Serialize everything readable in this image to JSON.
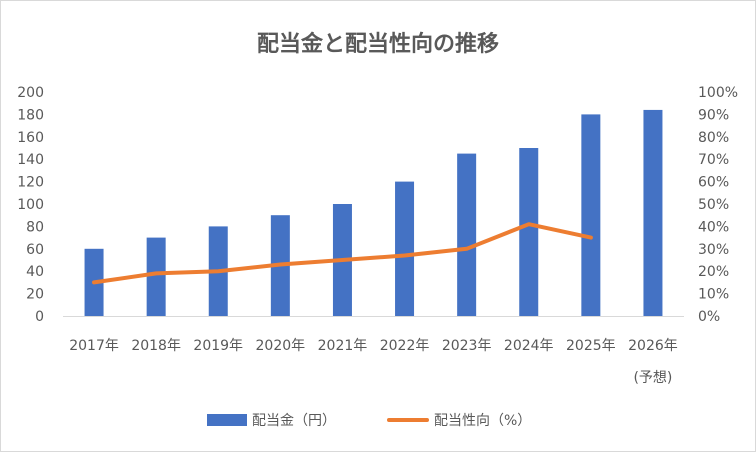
{
  "chart_data": {
    "type": "bar+line",
    "title": "配当金と配当性向の推移",
    "categories": [
      "2017年",
      "2018年",
      "2019年",
      "2020年",
      "2021年",
      "2022年",
      "2023年",
      "2024年",
      "2025年",
      "2026年"
    ],
    "category_sublabels": [
      "",
      "",
      "",
      "",
      "",
      "",
      "",
      "",
      "",
      "(予想)"
    ],
    "series": [
      {
        "name": "配当金（円）",
        "type": "bar",
        "axis": "left",
        "color": "#4472c4",
        "values": [
          60,
          70,
          80,
          90,
          100,
          120,
          145,
          150,
          180,
          184
        ]
      },
      {
        "name": "配当性向（%）",
        "type": "line",
        "axis": "right",
        "color": "#ed7d31",
        "values": [
          15,
          19,
          20,
          23,
          25,
          27,
          30,
          41,
          35,
          null
        ]
      }
    ],
    "y_left": {
      "min": 0,
      "max": 200,
      "step": 20,
      "ticks": [
        "0",
        "20",
        "40",
        "60",
        "80",
        "100",
        "120",
        "140",
        "160",
        "180",
        "200"
      ]
    },
    "y_right": {
      "min": 0,
      "max": 100,
      "step": 10,
      "ticks": [
        "0%",
        "10%",
        "20%",
        "30%",
        "40%",
        "50%",
        "60%",
        "70%",
        "80%",
        "90%",
        "100%"
      ]
    },
    "grid": false,
    "legend": "bottom"
  }
}
